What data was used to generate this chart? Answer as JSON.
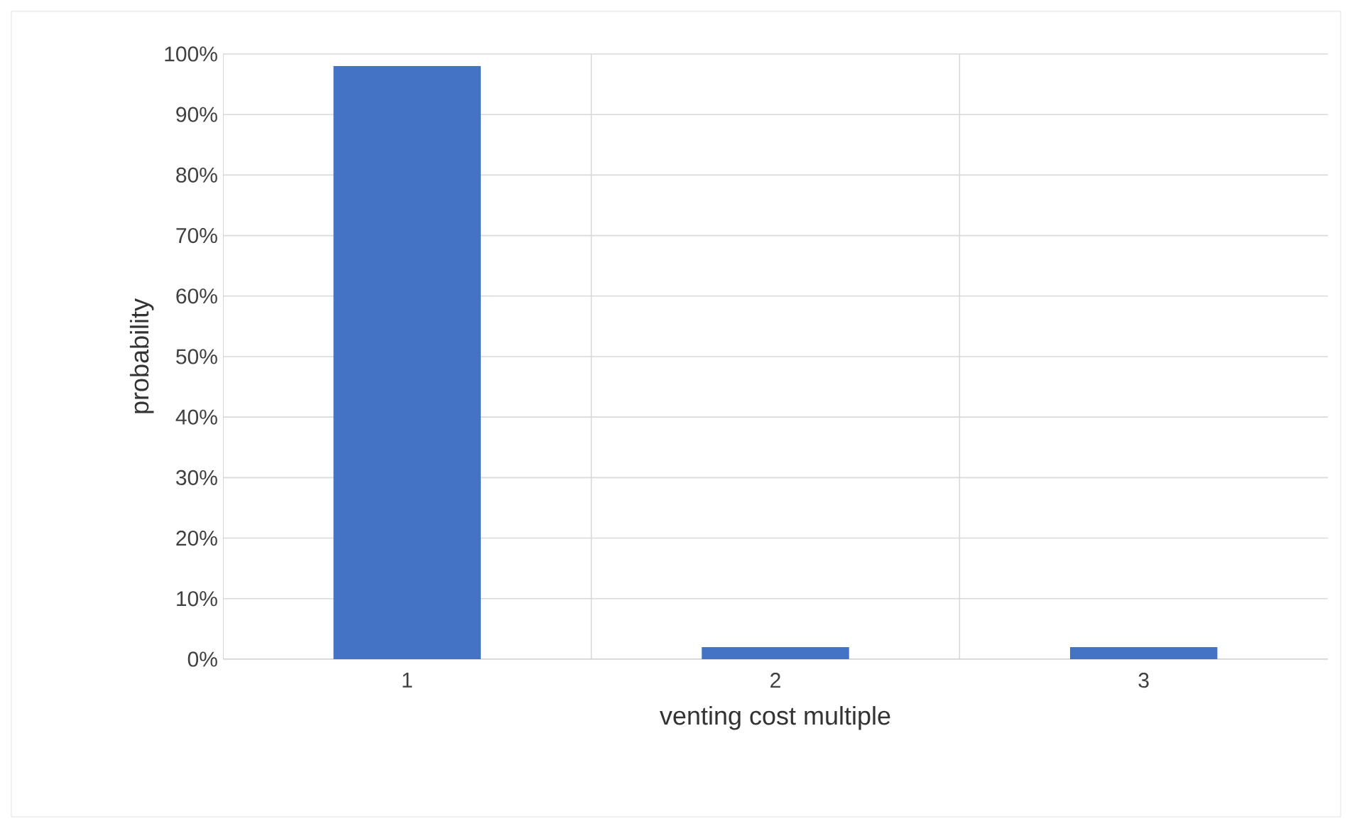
{
  "chart_data": {
    "type": "bar",
    "xlabel": "venting cost multiple",
    "ylabel": "probability",
    "categories": [
      "1",
      "2",
      "3"
    ],
    "values": [
      98,
      2,
      2
    ],
    "color": "#4472c4",
    "ylim": [
      0,
      100
    ],
    "yticks": [
      {
        "value": 0,
        "label": "0%"
      },
      {
        "value": 10,
        "label": "10%"
      },
      {
        "value": 20,
        "label": "20%"
      },
      {
        "value": 30,
        "label": "30%"
      },
      {
        "value": 40,
        "label": "40%"
      },
      {
        "value": 50,
        "label": "50%"
      },
      {
        "value": 60,
        "label": "60%"
      },
      {
        "value": 70,
        "label": "70%"
      },
      {
        "value": 80,
        "label": "80%"
      },
      {
        "value": 90,
        "label": "90%"
      },
      {
        "value": 100,
        "label": "100%"
      }
    ],
    "grid": true
  }
}
